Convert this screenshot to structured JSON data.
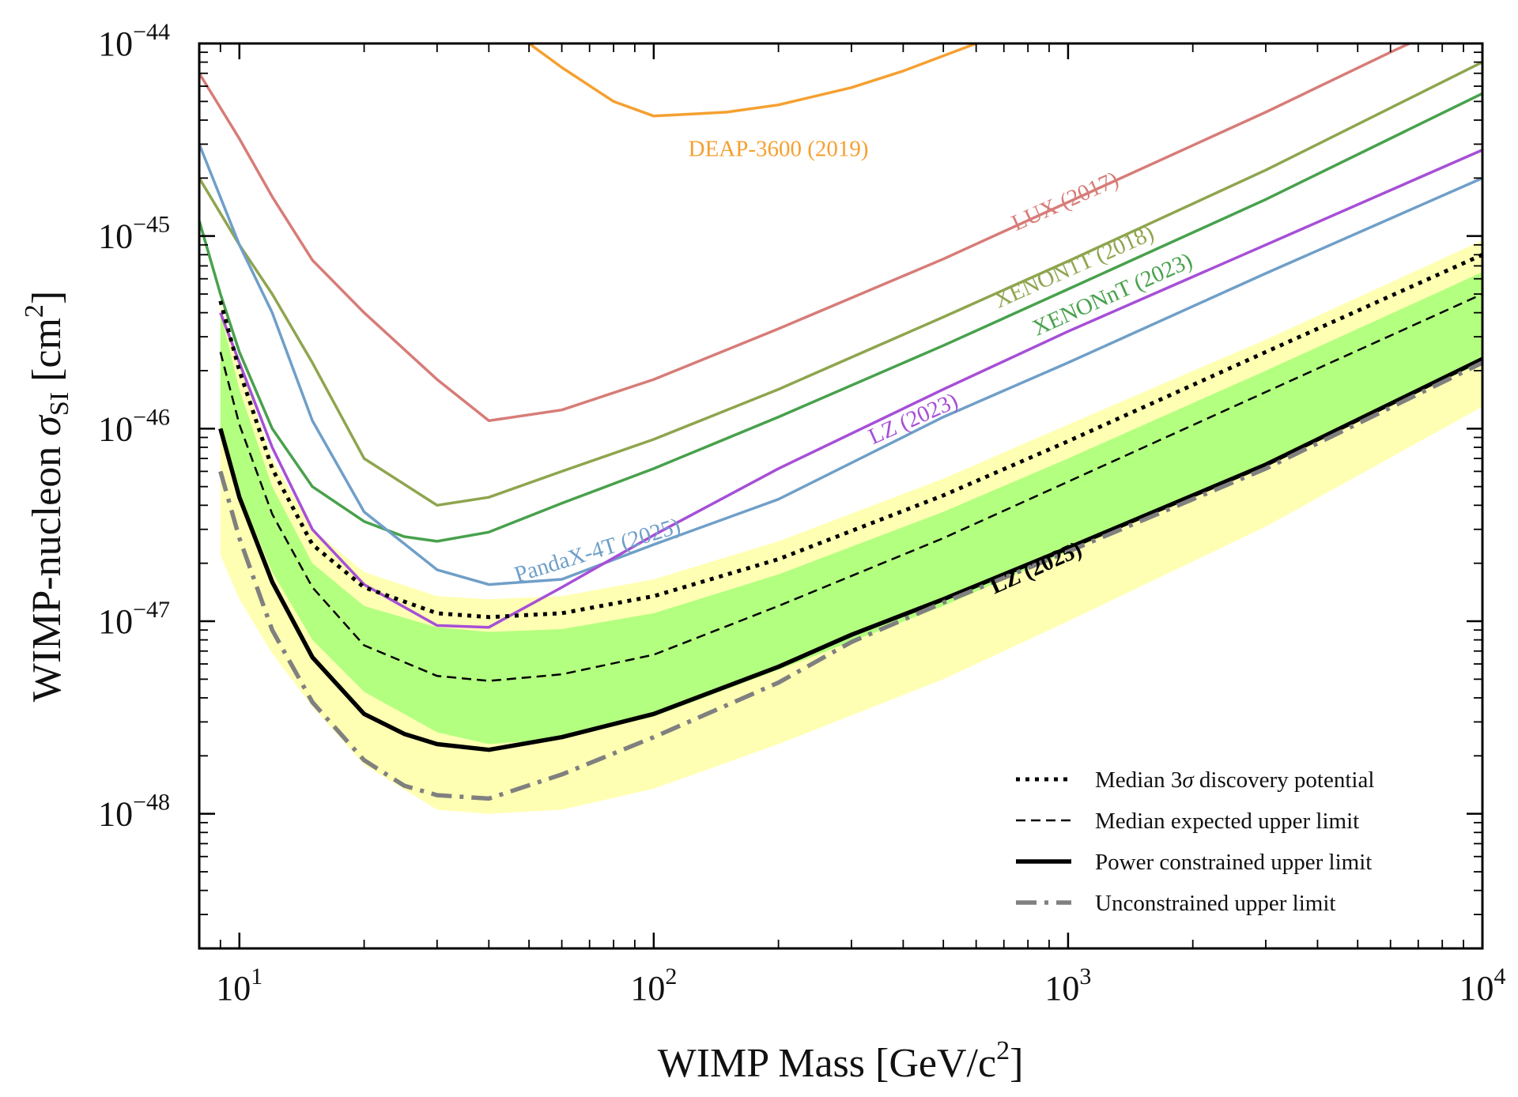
{
  "chart_data": {
    "type": "line",
    "xlabel": "WIMP Mass [GeV/c",
    "xlabel_sup": "2",
    "xlabel_end": "]",
    "ylabel": "WIMP-nucleon ",
    "ylabel_sym": "σ",
    "ylabel_sub": "SI",
    "ylabel_unit": " [cm",
    "ylabel_unit_sup": "2",
    "ylabel_end": "]",
    "xscale": "log",
    "yscale": "log",
    "xlim": [
      8,
      10000
    ],
    "ylim": [
      2e-49,
      1e-44
    ],
    "grid": false,
    "legend_position": "bottom-right",
    "x_ticks": [
      {
        "value": 10,
        "base": "10",
        "exp": "1"
      },
      {
        "value": 100,
        "base": "10",
        "exp": "2"
      },
      {
        "value": 1000,
        "base": "10",
        "exp": "3"
      },
      {
        "value": 10000,
        "base": "10",
        "exp": "4"
      }
    ],
    "y_ticks": [
      {
        "value": 1e-44,
        "base": "10",
        "exp": "−44"
      },
      {
        "value": 1e-45,
        "base": "10",
        "exp": "−45"
      },
      {
        "value": 1e-46,
        "base": "10",
        "exp": "−46"
      },
      {
        "value": 1e-47,
        "base": "10",
        "exp": "−47"
      },
      {
        "value": 1e-48,
        "base": "10",
        "exp": "−48"
      }
    ],
    "bands": [
      {
        "sigma": 2,
        "color": "#ffffb3",
        "upper": [
          [
            9,
            4.5e-46
          ],
          [
            10,
            2.2e-46
          ],
          [
            12,
            7e-47
          ],
          [
            15,
            3e-47
          ],
          [
            20,
            1.8e-47
          ],
          [
            30,
            1.35e-47
          ],
          [
            40,
            1.3e-47
          ],
          [
            60,
            1.35e-47
          ],
          [
            100,
            1.65e-47
          ],
          [
            200,
            2.6e-47
          ],
          [
            500,
            5.5e-47
          ],
          [
            1000,
            1.05e-46
          ],
          [
            3000,
            2.9e-46
          ],
          [
            10000,
            9.5e-46
          ]
        ],
        "lower": [
          [
            9,
            2.2e-47
          ],
          [
            10,
            1.3e-47
          ],
          [
            12,
            6.8e-48
          ],
          [
            15,
            3.6e-48
          ],
          [
            20,
            1.8e-48
          ],
          [
            30,
            1.05e-48
          ],
          [
            40,
            1e-48
          ],
          [
            60,
            1.05e-48
          ],
          [
            100,
            1.35e-48
          ],
          [
            200,
            2.3e-48
          ],
          [
            500,
            5e-48
          ],
          [
            1000,
            1e-47
          ],
          [
            3000,
            3.1e-47
          ],
          [
            10000,
            1.3e-46
          ]
        ]
      },
      {
        "sigma": 1,
        "color": "#b3ff80",
        "upper": [
          [
            9,
            4e-46
          ],
          [
            10,
            1.6e-46
          ],
          [
            12,
            5e-47
          ],
          [
            15,
            2e-47
          ],
          [
            20,
            1.2e-47
          ],
          [
            30,
            9.3e-48
          ],
          [
            40,
            8.8e-48
          ],
          [
            60,
            9.1e-48
          ],
          [
            100,
            1.1e-47
          ],
          [
            200,
            1.75e-47
          ],
          [
            500,
            3.7e-47
          ],
          [
            1000,
            7e-47
          ],
          [
            3000,
            2e-46
          ],
          [
            10000,
            6.5e-46
          ]
        ],
        "lower": [
          [
            9,
            1e-46
          ],
          [
            10,
            4.6e-47
          ],
          [
            12,
            1.8e-47
          ],
          [
            15,
            8e-48
          ],
          [
            20,
            4.3e-48
          ],
          [
            30,
            2.65e-48
          ],
          [
            40,
            2.3e-48
          ],
          [
            60,
            2.45e-48
          ],
          [
            100,
            3.2e-48
          ],
          [
            200,
            5.6e-48
          ],
          [
            500,
            1.2e-47
          ],
          [
            1000,
            2.3e-47
          ],
          [
            3000,
            6.7e-47
          ],
          [
            10000,
            2.2e-46
          ]
        ]
      }
    ],
    "series": [
      {
        "name": "DEAP-3600 (2019)",
        "color": "#f5a030",
        "width": 3.5,
        "style": "solid",
        "points": [
          [
            50,
            1e-44
          ],
          [
            60,
            7.5e-45
          ],
          [
            80,
            5e-45
          ],
          [
            100,
            4.2e-45
          ],
          [
            150,
            4.4e-45
          ],
          [
            200,
            4.8e-45
          ],
          [
            300,
            5.9e-45
          ],
          [
            400,
            7.2e-45
          ],
          [
            600,
            1e-44
          ]
        ]
      },
      {
        "name": "LUX (2017)",
        "color": "#d77c78",
        "width": 3.5,
        "style": "solid",
        "points": [
          [
            8,
            7e-45
          ],
          [
            10,
            3.2e-45
          ],
          [
            12,
            1.6e-45
          ],
          [
            15,
            7.5e-46
          ],
          [
            20,
            4e-46
          ],
          [
            30,
            1.8e-46
          ],
          [
            40,
            1.1e-46
          ],
          [
            60,
            1.25e-46
          ],
          [
            100,
            1.8e-46
          ],
          [
            200,
            3.3e-46
          ],
          [
            500,
            7.6e-46
          ],
          [
            1000,
            1.5e-45
          ],
          [
            3000,
            4.4e-45
          ],
          [
            6000,
            9e-45
          ],
          [
            10000,
            1.5e-44
          ]
        ]
      },
      {
        "name": "XENON1T (2018)",
        "color": "#8fa54e",
        "width": 3.5,
        "style": "solid",
        "points": [
          [
            8,
            2e-45
          ],
          [
            10,
            9e-46
          ],
          [
            12,
            5e-46
          ],
          [
            15,
            2.2e-46
          ],
          [
            20,
            7e-47
          ],
          [
            30,
            4e-47
          ],
          [
            40,
            4.4e-47
          ],
          [
            60,
            6e-47
          ],
          [
            100,
            8.8e-47
          ],
          [
            200,
            1.6e-46
          ],
          [
            500,
            3.8e-46
          ],
          [
            1000,
            7.4e-46
          ],
          [
            3000,
            2.2e-45
          ],
          [
            10000,
            8e-45
          ]
        ]
      },
      {
        "name": "XENONnT (2023)",
        "color": "#48a14c",
        "width": 3.5,
        "style": "solid",
        "points": [
          [
            8,
            1.2e-45
          ],
          [
            9,
            5e-46
          ],
          [
            10,
            2.5e-46
          ],
          [
            12,
            1e-46
          ],
          [
            15,
            5e-47
          ],
          [
            20,
            3.3e-47
          ],
          [
            25,
            2.75e-47
          ],
          [
            30,
            2.6e-47
          ],
          [
            40,
            2.9e-47
          ],
          [
            60,
            4.1e-47
          ],
          [
            100,
            6.2e-47
          ],
          [
            200,
            1.15e-46
          ],
          [
            500,
            2.7e-46
          ],
          [
            1000,
            5.3e-46
          ],
          [
            3000,
            1.55e-45
          ],
          [
            10000,
            5.5e-45
          ]
        ]
      },
      {
        "name": "PandaX-4T (2025)",
        "color": "#6f9fc8",
        "width": 3.5,
        "style": "solid",
        "points": [
          [
            8,
            3e-45
          ],
          [
            10,
            9e-46
          ],
          [
            12,
            4e-46
          ],
          [
            15,
            1.1e-46
          ],
          [
            20,
            3.7e-47
          ],
          [
            30,
            1.85e-47
          ],
          [
            40,
            1.55e-47
          ],
          [
            60,
            1.65e-47
          ],
          [
            100,
            2.5e-47
          ],
          [
            200,
            4.3e-47
          ],
          [
            500,
            1.15e-46
          ],
          [
            1000,
            2.2e-46
          ],
          [
            3000,
            6.4e-46
          ],
          [
            10000,
            2e-45
          ]
        ]
      },
      {
        "name": "LZ (2023)",
        "color": "#a64fd6",
        "width": 3.5,
        "style": "solid",
        "points": [
          [
            9,
            4e-46
          ],
          [
            10,
            2.2e-46
          ],
          [
            12,
            8e-47
          ],
          [
            15,
            3e-47
          ],
          [
            20,
            1.55e-47
          ],
          [
            30,
            9.5e-48
          ],
          [
            40,
            9.3e-48
          ],
          [
            60,
            1.5e-47
          ],
          [
            100,
            2.8e-47
          ],
          [
            200,
            6.2e-47
          ],
          [
            500,
            1.6e-46
          ],
          [
            1000,
            3.2e-46
          ],
          [
            3000,
            9e-46
          ],
          [
            10000,
            2.8e-45
          ]
        ]
      },
      {
        "name": "Median 3σ discovery potential",
        "color": "#000000",
        "width": 5,
        "style": "dotted",
        "points": [
          [
            9,
            4.6e-46
          ],
          [
            10,
            2e-46
          ],
          [
            12,
            6.2e-47
          ],
          [
            15,
            2.5e-47
          ],
          [
            20,
            1.5e-47
          ],
          [
            30,
            1.1e-47
          ],
          [
            40,
            1.05e-47
          ],
          [
            60,
            1.1e-47
          ],
          [
            100,
            1.35e-47
          ],
          [
            200,
            2.1e-47
          ],
          [
            500,
            4.5e-47
          ],
          [
            1000,
            8.6e-47
          ],
          [
            3000,
            2.5e-46
          ],
          [
            10000,
            8e-46
          ]
        ]
      },
      {
        "name": "Median expected upper limit",
        "color": "#000000",
        "width": 2.5,
        "style": "dashed",
        "points": [
          [
            9,
            2.5e-46
          ],
          [
            10,
            1.05e-46
          ],
          [
            12,
            3.6e-47
          ],
          [
            15,
            1.5e-47
          ],
          [
            20,
            7.5e-48
          ],
          [
            30,
            5.2e-48
          ],
          [
            40,
            4.9e-48
          ],
          [
            60,
            5.3e-48
          ],
          [
            100,
            6.7e-48
          ],
          [
            200,
            1.2e-47
          ],
          [
            500,
            2.7e-47
          ],
          [
            1000,
            5.3e-47
          ],
          [
            3000,
            1.55e-46
          ],
          [
            10000,
            5e-46
          ]
        ]
      },
      {
        "name": "Power constrained upper limit",
        "color": "#000000",
        "width": 5.5,
        "style": "solid",
        "points": [
          [
            9,
            1e-46
          ],
          [
            10,
            4.4e-47
          ],
          [
            12,
            1.6e-47
          ],
          [
            15,
            6.5e-48
          ],
          [
            20,
            3.3e-48
          ],
          [
            25,
            2.6e-48
          ],
          [
            30,
            2.3e-48
          ],
          [
            40,
            2.15e-48
          ],
          [
            60,
            2.5e-48
          ],
          [
            100,
            3.3e-48
          ],
          [
            200,
            5.8e-48
          ],
          [
            300,
            8.5e-48
          ],
          [
            500,
            1.3e-47
          ],
          [
            1000,
            2.4e-47
          ],
          [
            3000,
            6.5e-47
          ],
          [
            10000,
            2.3e-46
          ]
        ]
      },
      {
        "name": "Unconstrained upper limit",
        "color": "#808080",
        "width": 5.5,
        "style": "dashdot",
        "points": [
          [
            9,
            6e-47
          ],
          [
            10,
            2.7e-47
          ],
          [
            12,
            9e-48
          ],
          [
            15,
            3.8e-48
          ],
          [
            20,
            1.9e-48
          ],
          [
            25,
            1.4e-48
          ],
          [
            30,
            1.25e-48
          ],
          [
            40,
            1.2e-48
          ],
          [
            60,
            1.6e-48
          ],
          [
            100,
            2.5e-48
          ],
          [
            200,
            4.8e-48
          ],
          [
            300,
            7.8e-48
          ],
          [
            500,
            1.25e-47
          ],
          [
            1000,
            2.3e-47
          ],
          [
            3000,
            6.2e-47
          ],
          [
            10000,
            2.2e-46
          ]
        ]
      }
    ],
    "annotations": [
      {
        "text": "DEAP-3600 (2019)",
        "x": 200,
        "y": 2.6e-45,
        "angle": 0,
        "color": "#f5a030",
        "weight": "normal"
      },
      {
        "text": "LUX (2017)",
        "x": 1000,
        "y": 1.4e-45,
        "angle": -24,
        "color": "#d77c78",
        "weight": "normal"
      },
      {
        "text": "XENON1T (2018)",
        "x": 1050,
        "y": 6.4e-46,
        "angle": -24,
        "color": "#8fa54e",
        "weight": "normal"
      },
      {
        "text": "XENONnT (2023)",
        "x": 1300,
        "y": 4.6e-46,
        "angle": -24,
        "color": "#48a14c",
        "weight": "normal"
      },
      {
        "text": "PandaX-4T (2025)",
        "x": 74,
        "y": 2.15e-47,
        "angle": -17,
        "color": "#6f9fc8",
        "weight": "normal"
      },
      {
        "text": "LZ (2023)",
        "x": 430,
        "y": 1.04e-46,
        "angle": -24,
        "color": "#a64fd6",
        "weight": "normal"
      },
      {
        "text": "LZ (2025)",
        "x": 850,
        "y": 1.75e-47,
        "angle": -24,
        "color": "#000000",
        "weight": "bold"
      }
    ],
    "legend": [
      {
        "label": "Median 3",
        "sym": "σ",
        "label_rest": " discovery potential",
        "style": "dotted",
        "color": "#000000"
      },
      {
        "label": "Median expected upper limit",
        "style": "dashed",
        "color": "#000000"
      },
      {
        "label": "Power constrained upper limit",
        "style": "solid",
        "color": "#000000"
      },
      {
        "label": "Unconstrained upper limit",
        "style": "dashdot",
        "color": "#808080"
      }
    ]
  }
}
